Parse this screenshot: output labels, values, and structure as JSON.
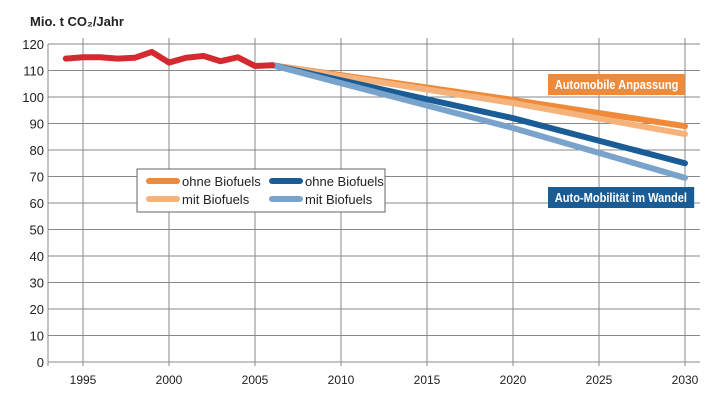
{
  "chart_data": {
    "type": "line",
    "ylabel": "Mio. t CO₂/Jahr",
    "xlim": [
      1994,
      2030
    ],
    "ylim": [
      0,
      120
    ],
    "xticks": [
      1995,
      2000,
      2005,
      2010,
      2015,
      2020,
      2025,
      2030
    ],
    "yticks": [
      0,
      10,
      20,
      30,
      40,
      50,
      60,
      70,
      80,
      90,
      100,
      110,
      120
    ],
    "grid": true,
    "history": {
      "color": "#d42a2f",
      "x": [
        1994,
        1995,
        1996,
        1997,
        1998,
        1999,
        2000,
        2001,
        2002,
        2003,
        2004,
        2005,
        2006
      ],
      "y": [
        114.5,
        115,
        115,
        114.5,
        114.8,
        117,
        113,
        114.8,
        115.5,
        113.5,
        115,
        111.7,
        112
      ]
    },
    "series": [
      {
        "group": "Automobile Anpassung",
        "name": "ohne Biofuels",
        "color": "#ee8a3a",
        "x": [
          2006,
          2020,
          2030
        ],
        "y": [
          112,
          98.9,
          89
        ]
      },
      {
        "group": "Automobile Anpassung",
        "name": "mit Biofuels",
        "color": "#f5b27a",
        "x": [
          2006,
          2020,
          2030
        ],
        "y": [
          112,
          97.7,
          86
        ]
      },
      {
        "group": "Auto-Mobilität im Wandel",
        "name": "ohne Biofuels",
        "color": "#1a5d96",
        "x": [
          2006,
          2020,
          2030
        ],
        "y": [
          112,
          92,
          75
        ]
      },
      {
        "group": "Auto-Mobilität im Wandel",
        "name": "mit Biofuels",
        "color": "#7aa3cc",
        "x": [
          2006,
          2020,
          2030
        ],
        "y": [
          112,
          88.3,
          69.5
        ]
      }
    ],
    "annotations": [
      {
        "text": "Automobile Anpassung",
        "color": "#ee8a3a"
      },
      {
        "text": "Auto-Mobilität im Wandel",
        "color": "#1a5d96"
      }
    ],
    "legend_placement": "center-left"
  }
}
